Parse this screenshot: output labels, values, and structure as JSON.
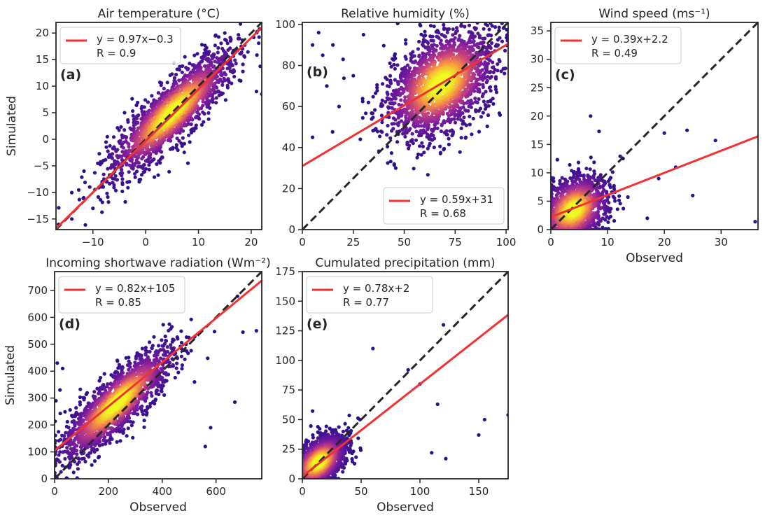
{
  "chart_data": [
    {
      "panel_id": "a",
      "type": "scatter",
      "title": "Air temperature (°C)",
      "panel_label": "(a)",
      "xlabel": "",
      "ylabel": "Simulated",
      "xlim": [
        -17,
        22
      ],
      "ylim": [
        -17,
        22
      ],
      "xticks": [
        -10,
        0,
        10,
        20
      ],
      "yticks": [
        -15,
        -10,
        -5,
        0,
        5,
        10,
        15,
        20
      ],
      "xtick_labels": [
        "−10",
        "0",
        "10",
        "20"
      ],
      "ytick_labels": [
        "−15",
        "−10",
        "−5",
        "0",
        "5",
        "10",
        "15",
        "20"
      ],
      "fit": {
        "slope": 0.97,
        "intercept": -0.3,
        "equation": "y = 0.97x−0.3",
        "r_label": "R = 0.9"
      },
      "legend_position": "top-left",
      "cloud": {
        "center": [
          5,
          5
        ],
        "spread_along": 8,
        "spread_across": 2.2,
        "count": 1800
      },
      "outliers": [
        [
          -14,
          -15
        ],
        [
          -10,
          -13
        ],
        [
          21,
          9
        ],
        [
          22,
          8.5
        ],
        [
          -8,
          -4
        ],
        [
          -4,
          5
        ],
        [
          15,
          20
        ],
        [
          18,
          11
        ]
      ]
    },
    {
      "panel_id": "b",
      "type": "scatter",
      "title": "Relative humidity (%)",
      "panel_label": "(b)",
      "xlabel": "",
      "ylabel": "",
      "xlim": [
        0,
        101
      ],
      "ylim": [
        0,
        101
      ],
      "xticks": [
        0,
        25,
        50,
        75,
        100
      ],
      "yticks": [
        0,
        20,
        40,
        60,
        80,
        100
      ],
      "xtick_labels": [
        "0",
        "25",
        "50",
        "75",
        "100"
      ],
      "ytick_labels": [
        "0",
        "20",
        "40",
        "60",
        "80",
        "100"
      ],
      "fit": {
        "slope": 0.59,
        "intercept": 31,
        "equation": "y = 0.59x+31",
        "r_label": "R = 0.68"
      },
      "legend_position": "bottom-right",
      "cloud": {
        "center": [
          68,
          71
        ],
        "spread_along": 16,
        "spread_across": 10,
        "count": 2000
      },
      "outliers": [
        [
          5,
          90
        ],
        [
          8,
          96
        ],
        [
          10,
          85
        ],
        [
          15,
          90
        ],
        [
          20,
          83
        ],
        [
          12,
          70
        ],
        [
          5,
          45
        ],
        [
          18,
          60
        ],
        [
          25,
          75
        ],
        [
          30,
          95
        ]
      ]
    },
    {
      "panel_id": "c",
      "type": "scatter",
      "title": "Wind speed (ms⁻¹)",
      "panel_label": "(c)",
      "xlabel": "Observed",
      "ylabel": "",
      "xlim": [
        0,
        36.5
      ],
      "ylim": [
        0,
        36.5
      ],
      "xticks": [
        0,
        10,
        20,
        30
      ],
      "yticks": [
        0,
        5,
        10,
        15,
        20,
        25,
        30,
        35
      ],
      "xtick_labels": [
        "0",
        "10",
        "20",
        "30"
      ],
      "ytick_labels": [
        "0",
        "5",
        "10",
        "15",
        "20",
        "25",
        "30",
        "35"
      ],
      "fit": {
        "slope": 0.39,
        "intercept": 2.2,
        "equation": "y = 0.39x+2.2",
        "r_label": "R = 0.49"
      },
      "legend_position": "top-left",
      "cloud": {
        "center": [
          4,
          3.5
        ],
        "spread_along": 3.5,
        "spread_across": 2.5,
        "count": 1400
      },
      "outliers": [
        [
          7,
          20
        ],
        [
          8.5,
          17.3
        ],
        [
          20,
          17
        ],
        [
          24,
          17.5
        ],
        [
          29,
          15.7
        ],
        [
          36,
          1.4
        ],
        [
          22,
          11
        ],
        [
          25,
          6
        ],
        [
          17,
          2
        ],
        [
          19,
          9
        ]
      ]
    },
    {
      "panel_id": "d",
      "type": "scatter",
      "title": "Incoming shortwave radiation (Wm⁻²)",
      "panel_label": "(d)",
      "xlabel": "Observed",
      "ylabel": "Simulated",
      "xlim": [
        0,
        770
      ],
      "ylim": [
        0,
        770
      ],
      "xticks": [
        0,
        200,
        400,
        600
      ],
      "yticks": [
        0,
        100,
        200,
        300,
        400,
        500,
        600,
        700
      ],
      "xtick_labels": [
        "0",
        "200",
        "400",
        "600"
      ],
      "ytick_labels": [
        "0",
        "100",
        "200",
        "300",
        "400",
        "500",
        "600",
        "700"
      ],
      "fit": {
        "slope": 0.82,
        "intercept": 105,
        "equation": "y = 0.82x+105",
        "r_label": "R = 0.85"
      },
      "legend_position": "top-left",
      "cloud": {
        "center": [
          230,
          280
        ],
        "spread_along": 140,
        "spread_across": 40,
        "count": 1800
      },
      "outliers": [
        [
          10,
          430
        ],
        [
          5,
          290
        ],
        [
          30,
          410
        ],
        [
          20,
          330
        ],
        [
          750,
          550
        ],
        [
          700,
          545
        ],
        [
          670,
          285
        ],
        [
          560,
          120
        ],
        [
          580,
          190
        ],
        [
          520,
          360
        ]
      ]
    },
    {
      "panel_id": "e",
      "type": "scatter",
      "title": "Cumulated precipitation (mm)",
      "panel_label": "(e)",
      "xlabel": "Observed",
      "ylabel": "",
      "xlim": [
        0,
        175
      ],
      "ylim": [
        0,
        175
      ],
      "xticks": [
        0,
        50,
        100,
        150
      ],
      "yticks": [
        0,
        25,
        50,
        75,
        100,
        125,
        150,
        175
      ],
      "xtick_labels": [
        "0",
        "50",
        "100",
        "150"
      ],
      "ytick_labels": [
        "0",
        "25",
        "50",
        "75",
        "100",
        "125",
        "150",
        "175"
      ],
      "fit": {
        "slope": 0.78,
        "intercept": 2,
        "equation": "y = 0.78x+2",
        "r_label": "R = 0.77"
      },
      "legend_position": "top-left",
      "cloud": {
        "center": [
          14,
          14
        ],
        "spread_along": 14,
        "spread_across": 8,
        "count": 1600
      },
      "outliers": [
        [
          120,
          130
        ],
        [
          150,
          37
        ],
        [
          155,
          50
        ],
        [
          175,
          54
        ],
        [
          122,
          17
        ],
        [
          110,
          22
        ],
        [
          90,
          92
        ],
        [
          100,
          80
        ],
        [
          60,
          110
        ],
        [
          115,
          63
        ]
      ]
    }
  ],
  "colors": {
    "fit_line": "#ef3333",
    "one_to_one_line": "#262626",
    "low_density": "#2a0f8c",
    "mid_density": "#b52f8c",
    "high_density": "#fdb32f",
    "peak_density": "#f0f921"
  }
}
